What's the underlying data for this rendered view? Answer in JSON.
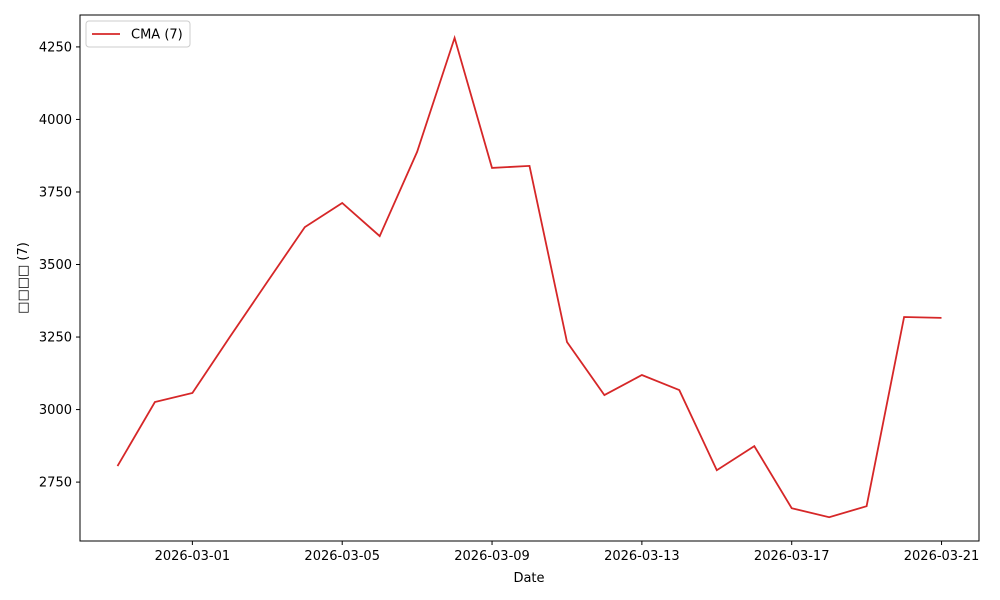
{
  "chart_data": {
    "type": "line",
    "xlabel": "Date",
    "ylabel": "□□□□ (7)",
    "x": [
      "2026-02-27",
      "2026-02-28",
      "2026-03-01",
      "2026-03-02",
      "2026-03-03",
      "2026-03-04",
      "2026-03-05",
      "2026-03-06",
      "2026-03-07",
      "2026-03-08",
      "2026-03-09",
      "2026-03-10",
      "2026-03-11",
      "2026-03-12",
      "2026-03-13",
      "2026-03-14",
      "2026-03-15",
      "2026-03-16",
      "2026-03-17",
      "2026-03-18",
      "2026-03-19",
      "2026-03-20",
      "2026-03-21"
    ],
    "series": [
      {
        "name": "CMA (7)",
        "color": "#d62728",
        "values": [
          2805,
          3026,
          3057,
          3250,
          3440,
          3629,
          3712,
          3598,
          3888,
          4281,
          3833,
          3840,
          3233,
          3050,
          3119,
          3067,
          2791,
          2874,
          2660,
          2629,
          2667,
          3319,
          3316
        ]
      }
    ],
    "xlim": [
      "2026-02-26",
      "2026-03-22"
    ],
    "xticks": [
      "2026-03-01",
      "2026-03-05",
      "2026-03-09",
      "2026-03-13",
      "2026-03-17",
      "2026-03-21"
    ],
    "ylim": [
      2547,
      4360
    ],
    "yticks": [
      2750,
      3000,
      3250,
      3500,
      3750,
      4000,
      4250
    ],
    "legend": "upper left",
    "grid": false
  }
}
